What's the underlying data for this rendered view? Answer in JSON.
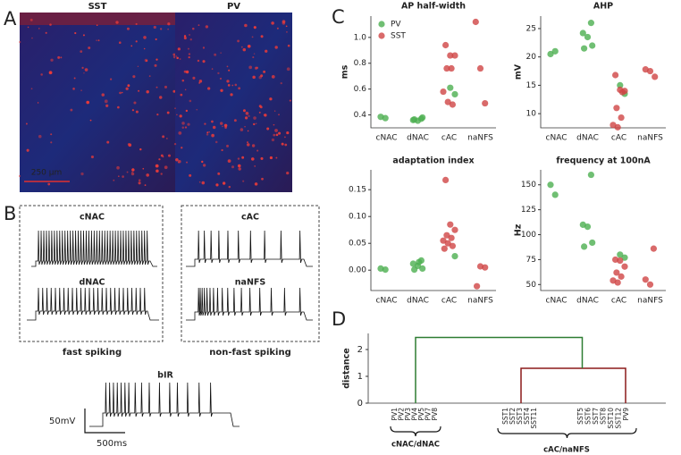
{
  "panel_labels": [
    "A",
    "B",
    "C",
    "D"
  ],
  "panel_a": {
    "images": [
      {
        "label": "SST",
        "color": "#c0282d"
      },
      {
        "label": "PV",
        "color": "#3a9a3a"
      }
    ],
    "scale_bar": "250 μm"
  },
  "panel_b": {
    "traces": [
      {
        "label": "cNAC"
      },
      {
        "label": "dNAC"
      },
      {
        "label": "cAC"
      },
      {
        "label": "naNFS"
      },
      {
        "label": "bIR"
      }
    ],
    "groups": [
      "fast spiking",
      "non-fast spiking"
    ],
    "scale_v": "50mV",
    "scale_h": "500ms"
  },
  "chart_data": [
    {
      "type": "scatter",
      "title": "AP half-width",
      "y_label": "ms",
      "categories": [
        "cNAC",
        "dNAC",
        "cAC",
        "naNFS"
      ],
      "legend": "upper left",
      "series": [
        {
          "name": "PV",
          "color": "#4caf50",
          "x": [
            "cNAC",
            "cNAC",
            "dNAC",
            "dNAC",
            "dNAC",
            "dNAC",
            "dNAC",
            "cAC",
            "cAC"
          ],
          "values": [
            0.385,
            0.375,
            0.37,
            0.36,
            0.355,
            0.38,
            0.365,
            0.61,
            0.56
          ]
        },
        {
          "name": "SST",
          "color": "#d04545",
          "x": [
            "cAC",
            "cAC",
            "cAC",
            "cAC",
            "cAC",
            "cAC",
            "cAC",
            "cAC",
            "naNFS",
            "naNFS",
            "naNFS"
          ],
          "values": [
            0.94,
            0.86,
            0.86,
            0.76,
            0.76,
            0.58,
            0.5,
            0.48,
            1.12,
            0.76,
            0.49
          ]
        }
      ],
      "ylim": [
        0.3,
        1.165
      ],
      "yticks": [
        0.4,
        0.6,
        0.8,
        {
          "value": 1,
          "label": "1.0"
        }
      ]
    },
    {
      "type": "scatter",
      "title": "AHP",
      "y_label": "mV",
      "categories": [
        "cNAC",
        "dNAC",
        "cAC",
        "naNFS"
      ],
      "series": [
        {
          "name": "PV",
          "color": "#4caf50",
          "x": [
            "cNAC",
            "cNAC",
            "dNAC",
            "dNAC",
            "dNAC",
            "dNAC",
            "dNAC",
            "cAC",
            "cAC"
          ],
          "values": [
            20.5,
            21,
            26,
            24.2,
            23.5,
            22,
            21.5,
            15,
            13.5
          ]
        },
        {
          "name": "SST",
          "color": "#d04545",
          "x": [
            "cAC",
            "cAC",
            "cAC",
            "cAC",
            "cAC",
            "cAC",
            "cAC",
            "cAC",
            "naNFS",
            "naNFS",
            "naNFS"
          ],
          "values": [
            16.8,
            14.2,
            14,
            11,
            9.3,
            8,
            7.6,
            13.8,
            17.8,
            17.5,
            16.5
          ]
        }
      ],
      "ylim": [
        7.5,
        27.2
      ],
      "yticks": [
        10,
        15,
        20,
        25
      ]
    },
    {
      "type": "scatter",
      "title": "adaptation index",
      "categories": [
        "cNAC",
        "dNAC",
        "cAC",
        "naNFS"
      ],
      "series": [
        {
          "name": "PV",
          "color": "#4caf50",
          "x": [
            "cNAC",
            "cNAC",
            "dNAC",
            "dNAC",
            "dNAC",
            "dNAC",
            "dNAC",
            "dNAC",
            "cAC"
          ],
          "values": [
            0.003,
            0.001,
            0.018,
            0.012,
            0.008,
            0.003,
            0.001,
            0.015,
            0.026
          ]
        },
        {
          "name": "SST",
          "color": "#d04545",
          "x": [
            "cAC",
            "cAC",
            "cAC",
            "cAC",
            "cAC",
            "cAC",
            "cAC",
            "cAC",
            "cAC",
            "naNFS",
            "naNFS",
            "naNFS"
          ],
          "values": [
            0.168,
            0.085,
            0.075,
            0.065,
            0.06,
            0.055,
            0.05,
            0.045,
            0.04,
            0.007,
            0.005,
            -0.03
          ]
        }
      ],
      "ylim": [
        -0.038,
        0.187
      ],
      "yticks": [
        {
          "value": 0,
          "label": "0.00"
        },
        {
          "value": 0.05,
          "label": "0.05"
        },
        {
          "value": 0.1,
          "label": "0.10"
        },
        {
          "value": 0.15,
          "label": "0.15"
        }
      ]
    },
    {
      "type": "scatter",
      "title": "frequency at 100nA",
      "y_label": "Hz",
      "categories": [
        "cNAC",
        "dNAC",
        "cAC",
        "naNFS"
      ],
      "series": [
        {
          "name": "PV",
          "color": "#4caf50",
          "x": [
            "cNAC",
            "cNAC",
            "dNAC",
            "dNAC",
            "dNAC",
            "dNAC",
            "dNAC",
            "cAC",
            "cAC"
          ],
          "values": [
            150,
            140,
            160,
            110,
            108,
            92,
            88,
            80,
            77
          ]
        },
        {
          "name": "SST",
          "color": "#d04545",
          "x": [
            "cAC",
            "cAC",
            "cAC",
            "cAC",
            "cAC",
            "cAC",
            "cAC",
            "naNFS",
            "naNFS",
            "naNFS"
          ],
          "values": [
            75,
            74,
            68,
            62,
            58,
            54,
            52,
            86,
            55,
            50
          ]
        }
      ],
      "ylim": [
        44,
        165
      ],
      "yticks": [
        50,
        75,
        100,
        125,
        150
      ]
    },
    {
      "type": "dendrogram",
      "y_label": "distance",
      "ylim": [
        0,
        2.6
      ],
      "yticks": [
        0,
        1,
        2
      ],
      "leaves": [
        "PV1",
        "PV2",
        "PV3",
        "PV4",
        "PV5",
        "PV7",
        "PV8",
        "SST1",
        "SST2",
        "SST3",
        "SST4",
        "SST11",
        "SST5",
        "SST6",
        "SST7",
        "SST8",
        "SST10",
        "SST12",
        "PV9"
      ],
      "links": [
        {
          "color": "#2e7d32",
          "height": 2.45
        },
        {
          "color": "#8b1a1a",
          "height": 1.3
        }
      ],
      "clusters": [
        {
          "label": "cNAC/dNAC"
        },
        {
          "label": "cAC/naNFS"
        }
      ]
    }
  ]
}
